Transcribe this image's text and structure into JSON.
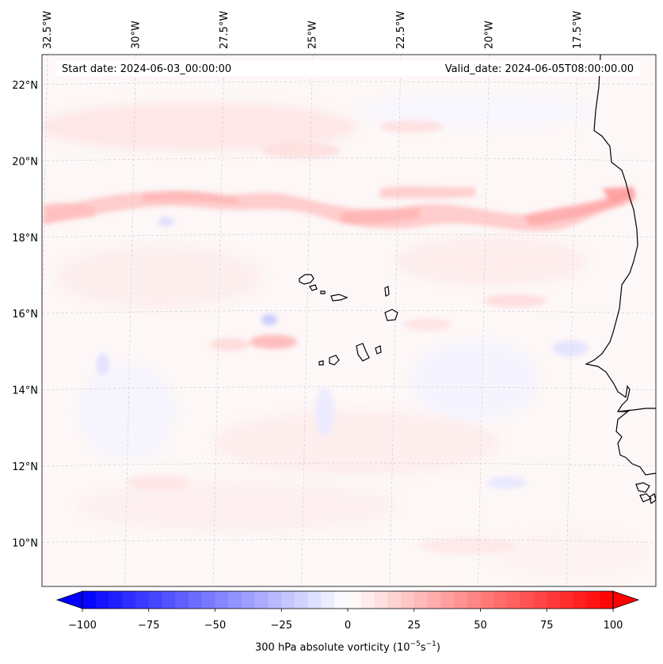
{
  "map": {
    "lon_labels": [
      {
        "text": "32.5°W",
        "lon": -32.5
      },
      {
        "text": "30°W",
        "lon": -30
      },
      {
        "text": "27.5°W",
        "lon": -27.5
      },
      {
        "text": "25°W",
        "lon": -25
      },
      {
        "text": "22.5°W",
        "lon": -22.5
      },
      {
        "text": "20°W",
        "lon": -20
      },
      {
        "text": "17.5°W",
        "lon": -17.5
      }
    ],
    "lat_labels": [
      {
        "text": "22°N",
        "lat": 22
      },
      {
        "text": "20°N",
        "lat": 20
      },
      {
        "text": "18°N",
        "lat": 18
      },
      {
        "text": "16°N",
        "lat": 16
      },
      {
        "text": "14°N",
        "lat": 14
      },
      {
        "text": "12°N",
        "lat": 12
      },
      {
        "text": "10°N",
        "lat": 10
      }
    ],
    "start_date": "Start date: 2024-06-03_00:00:00",
    "valid_date": "Valid_date: 2024-06-05T08:00:00.00",
    "colors": {
      "positive": "#ff0000",
      "negative": "#0000ff",
      "coastline": "#000000",
      "gridline": "#c8c8c8"
    }
  },
  "colorbar": {
    "label_main": "300 hPa absolute vorticity (10",
    "label_exp1": "−5",
    "label_mid": "s",
    "label_exp2": "−1",
    "label_end": ")",
    "vmin": -100,
    "vmax": 100,
    "ticks": [
      {
        "value": -100,
        "text": "−100"
      },
      {
        "value": -75,
        "text": "−75"
      },
      {
        "value": -50,
        "text": "−50"
      },
      {
        "value": -25,
        "text": "−25"
      },
      {
        "value": 0,
        "text": "0"
      },
      {
        "value": 25,
        "text": "25"
      },
      {
        "value": 50,
        "text": "50"
      },
      {
        "value": 75,
        "text": "75"
      },
      {
        "value": 100,
        "text": "100"
      }
    ]
  }
}
